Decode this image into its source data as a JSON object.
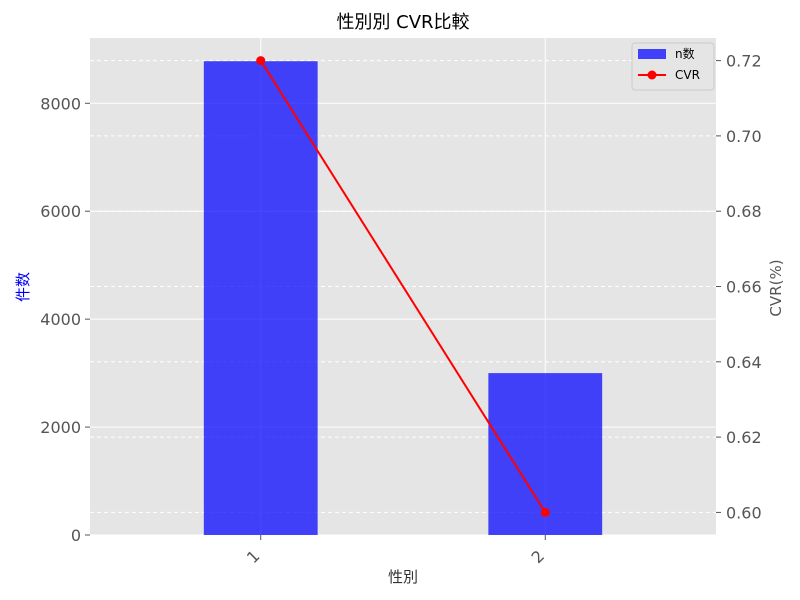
{
  "chart_data": {
    "type": "bar+line",
    "title": "性別別 CVR比較",
    "xlabel": "性別",
    "ylabel_left": "件数",
    "ylabel_right": "CVR(%)",
    "categories": [
      "1",
      "2"
    ],
    "series": [
      {
        "name": "n数",
        "type": "bar",
        "axis": "left",
        "values": [
          8780,
          3000
        ],
        "color": "#0000ff"
      },
      {
        "name": "CVR",
        "type": "line",
        "axis": "right",
        "values": [
          0.72,
          0.6
        ],
        "color": "#ff0000"
      }
    ],
    "ylim_left": [
      0,
      9210
    ],
    "yticks_left": [
      "0",
      "2000",
      "4000",
      "6000",
      "8000"
    ],
    "ylim_right": [
      0.594,
      0.726
    ],
    "yticks_right": [
      "0.60",
      "0.62",
      "0.64",
      "0.66",
      "0.68",
      "0.70",
      "0.72"
    ],
    "grid": true,
    "legend_position": "top-right",
    "colors": {
      "background": "#e5e5e5",
      "grid": "#ffffff",
      "left_label": "#0000ff"
    }
  }
}
